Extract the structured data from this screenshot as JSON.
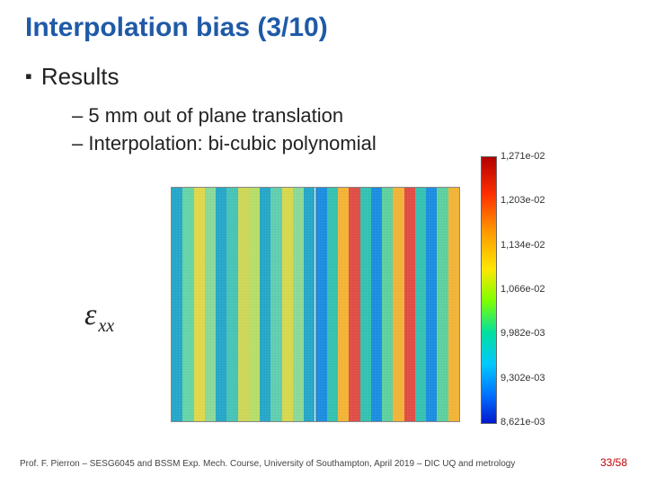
{
  "title": "Interpolation bias (3/10)",
  "section": "Results",
  "bullets": [
    "5 mm out of plane translation",
    "Interpolation: bi-cubic polynomial"
  ],
  "epsilon_label": {
    "sym": "ε",
    "sub": "xx"
  },
  "strain_maps": {
    "left_panel": {
      "stripe_colors": [
        "#2aa8c8",
        "#69d4a8",
        "#e0d84c",
        "#8cd99a",
        "#2aa8c8",
        "#4ac4b8",
        "#cfd75a",
        "#b8de6a",
        "#2aa8c8",
        "#63ceb0",
        "#d8d850",
        "#8cd99a",
        "#2aa8c8"
      ]
    },
    "right_panel": {
      "stripe_colors": [
        "#1f8fe0",
        "#38c2b2",
        "#f2b43a",
        "#e05048",
        "#38c2b2",
        "#1f8fe0",
        "#60d0a0",
        "#f2b43a",
        "#e05048",
        "#38c2b2",
        "#1f8fe0",
        "#60d0a0",
        "#f2b43a"
      ]
    }
  },
  "colorbar": {
    "labels": [
      {
        "pct": 0,
        "text": "1,271e-02"
      },
      {
        "pct": 16.6,
        "text": "1,203e-02"
      },
      {
        "pct": 33.3,
        "text": "1,134e-02"
      },
      {
        "pct": 50,
        "text": "1,066e-02"
      },
      {
        "pct": 66.6,
        "text": "9,982e-03"
      },
      {
        "pct": 83.3,
        "text": "9,302e-03"
      },
      {
        "pct": 100,
        "text": "8,621e-03"
      }
    ]
  },
  "footer": "Prof. F. Pierron – SESG6045 and BSSM Exp. Mech. Course, University of Southampton, April 2019 – DIC UQ and metrology",
  "page": "33/58"
}
